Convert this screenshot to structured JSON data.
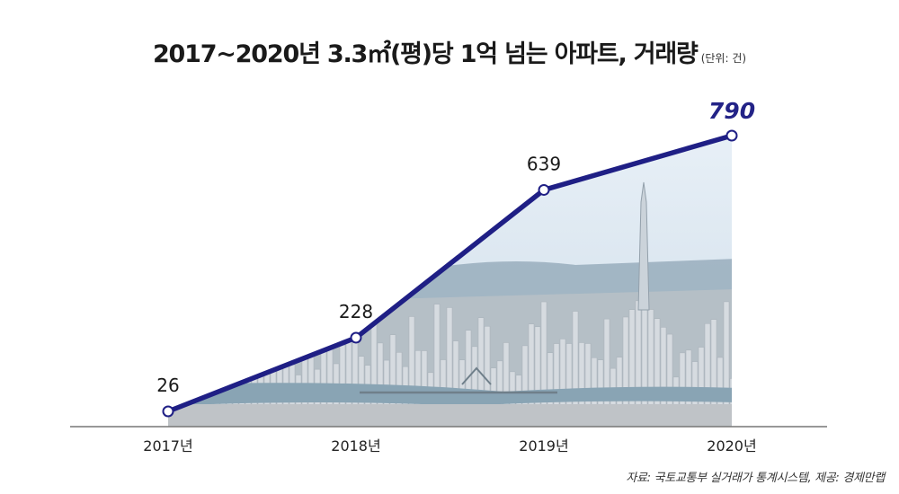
{
  "title": {
    "main": "2017~2020년 3.3㎡(평)당 1억 넘는 아파트, 거래량",
    "unit": "(단위: 건)"
  },
  "source": "자료: 국토교통부 실거래가 통계시스템, 제공: 경제만랩",
  "colors": {
    "line": "#1f1f85",
    "highlight": "#232387",
    "axis": "#777777",
    "text": "#1a1a1a"
  },
  "chart_data": {
    "type": "line",
    "title": "2017~2020년 3.3㎡(평)당 1억 넘는 아파트, 거래량",
    "categories": [
      "2017년",
      "2018년",
      "2019년",
      "2020년"
    ],
    "series": [
      {
        "name": "거래량",
        "values": [
          26,
          228,
          639,
          790
        ]
      }
    ],
    "data_labels": [
      "26",
      "228",
      "639",
      "790"
    ],
    "ylabel": "건",
    "ylim": [
      0,
      800
    ],
    "grid": false,
    "legend": "none",
    "background": "city skyline photo under line"
  }
}
